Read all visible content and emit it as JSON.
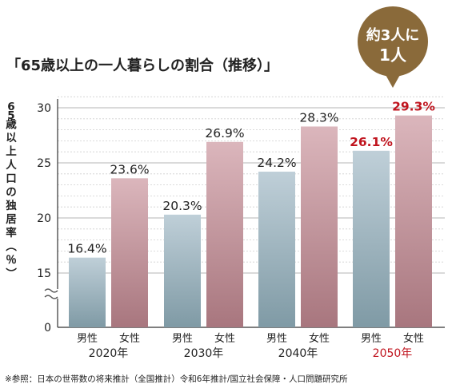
{
  "title": "「65歳以上の一人暮らしの割合（推移）」",
  "ylabel": "65歳以上人口の独居率（％）",
  "callout": {
    "line1": "約3人に",
    "line2": "1人"
  },
  "source_note": "※参照：日本の世帯数の将来推計（全国推計）令和6年推計/国立社会保障・人口問題研究所",
  "colors": {
    "male_top": "#bfcfd8",
    "male_bottom": "#7f9aa5",
    "female_top": "#dbb6bc",
    "female_bottom": "#a8767e",
    "highlight": "#c0141e",
    "callout": "#8a6a3a",
    "text": "#222222",
    "grid": "#cfcfcf"
  },
  "chart_data": {
    "type": "bar",
    "categories": [
      "2020年",
      "2030年",
      "2040年",
      "2050年"
    ],
    "sublabels": [
      "男性",
      "女性"
    ],
    "series": [
      {
        "name": "男性",
        "values": [
          16.4,
          20.3,
          24.2,
          26.1
        ],
        "labels": [
          "16.4%",
          "20.3%",
          "24.2%",
          "26.1%"
        ]
      },
      {
        "name": "女性",
        "values": [
          23.6,
          26.9,
          28.3,
          29.3
        ],
        "labels": [
          "23.6%",
          "26.9%",
          "28.3%",
          "29.3%"
        ]
      }
    ],
    "yticks": [
      0,
      15,
      20,
      25,
      30
    ],
    "ylim": [
      0,
      31
    ],
    "axis_break": true,
    "grid": true,
    "highlight_category": "2050年"
  }
}
